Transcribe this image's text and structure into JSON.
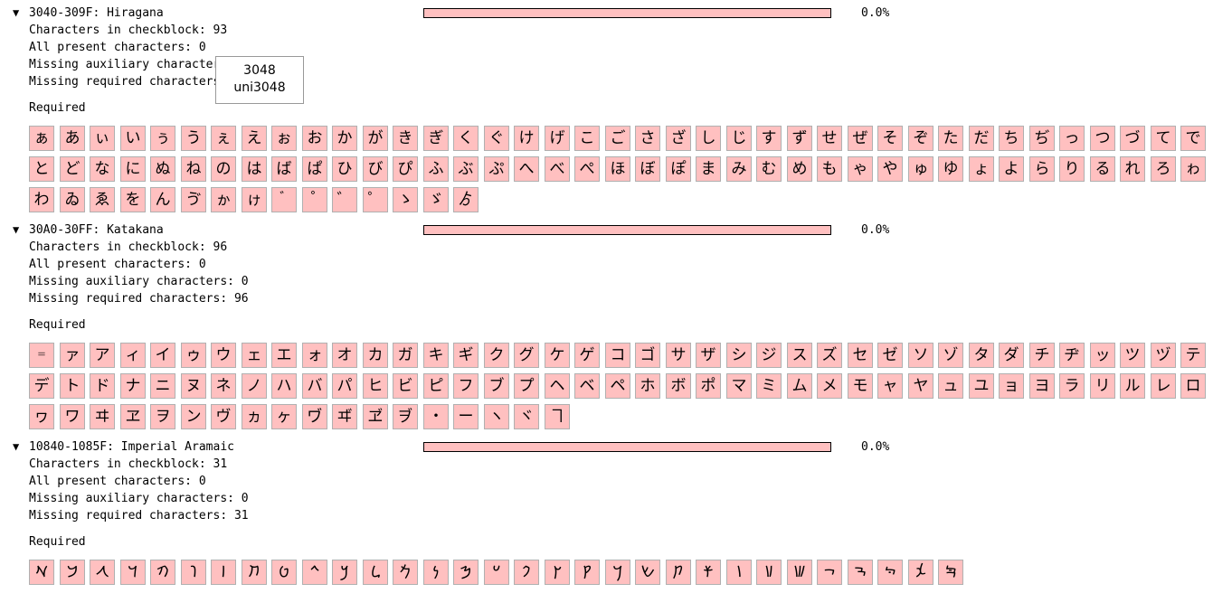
{
  "blocks": [
    {
      "title": "3040-309F: Hiragana",
      "percent": "0.0%",
      "progress": 0.0,
      "lines": [
        "Characters in checkblock: 93",
        "All present characters: 0",
        "Missing auxiliary characters: 0",
        "Missing required characters: 93"
      ],
      "required_label": "Required",
      "chars": [
        "ぁ",
        "あ",
        "ぃ",
        "い",
        "ぅ",
        "う",
        "ぇ",
        "え",
        "ぉ",
        "お",
        "か",
        "が",
        "き",
        "ぎ",
        "く",
        "ぐ",
        "け",
        "げ",
        "こ",
        "ご",
        "さ",
        "ざ",
        "し",
        "じ",
        "す",
        "ず",
        "せ",
        "ぜ",
        "そ",
        "ぞ",
        "た",
        "だ",
        "ち",
        "ぢ",
        "っ",
        "つ",
        "づ",
        "て",
        "で",
        "と",
        "ど",
        "な",
        "に",
        "ぬ",
        "ね",
        "の",
        "は",
        "ば",
        "ぱ",
        "ひ",
        "び",
        "ぴ",
        "ふ",
        "ぶ",
        "ぷ",
        "へ",
        "べ",
        "ぺ",
        "ほ",
        "ぼ",
        "ぽ",
        "ま",
        "み",
        "む",
        "め",
        "も",
        "ゃ",
        "や",
        "ゅ",
        "ゆ",
        "ょ",
        "よ",
        "ら",
        "り",
        "る",
        "れ",
        "ろ",
        "ゎ",
        "わ",
        "ゐ",
        "ゑ",
        "を",
        "ん",
        "ゔ",
        "ゕ",
        "ゖ",
        "゙",
        "゚",
        "゛",
        "゜",
        "ゝ",
        "ゞ",
        "ゟ"
      ]
    },
    {
      "title": "30A0-30FF: Katakana",
      "percent": "0.0%",
      "progress": 0.0,
      "lines": [
        "Characters in checkblock: 96",
        "All present characters: 0",
        "Missing auxiliary characters: 0",
        "Missing required characters: 96"
      ],
      "required_label": "Required",
      "chars": [
        "゠",
        "ァ",
        "ア",
        "ィ",
        "イ",
        "ゥ",
        "ウ",
        "ェ",
        "エ",
        "ォ",
        "オ",
        "カ",
        "ガ",
        "キ",
        "ギ",
        "ク",
        "グ",
        "ケ",
        "ゲ",
        "コ",
        "ゴ",
        "サ",
        "ザ",
        "シ",
        "ジ",
        "ス",
        "ズ",
        "セ",
        "ゼ",
        "ソ",
        "ゾ",
        "タ",
        "ダ",
        "チ",
        "ヂ",
        "ッ",
        "ツ",
        "ヅ",
        "テ",
        "デ",
        "ト",
        "ド",
        "ナ",
        "ニ",
        "ヌ",
        "ネ",
        "ノ",
        "ハ",
        "バ",
        "パ",
        "ヒ",
        "ビ",
        "ピ",
        "フ",
        "ブ",
        "プ",
        "ヘ",
        "ベ",
        "ペ",
        "ホ",
        "ボ",
        "ポ",
        "マ",
        "ミ",
        "ム",
        "メ",
        "モ",
        "ャ",
        "ヤ",
        "ュ",
        "ユ",
        "ョ",
        "ヨ",
        "ラ",
        "リ",
        "ル",
        "レ",
        "ロ",
        "ヮ",
        "ワ",
        "ヰ",
        "ヱ",
        "ヲ",
        "ン",
        "ヴ",
        "ヵ",
        "ヶ",
        "ヷ",
        "ヸ",
        "ヹ",
        "ヺ",
        "・",
        "ー",
        "ヽ",
        "ヾ",
        "ヿ"
      ]
    },
    {
      "title": "10840-1085F: Imperial Aramaic",
      "percent": "0.0%",
      "progress": 0.0,
      "lines": [
        "Characters in checkblock: 31",
        "All present characters: 0",
        "Missing auxiliary characters: 0",
        "Missing required characters: 31"
      ],
      "required_label": "Required",
      "chars": [
        "𐡀",
        "𐡁",
        "𐡂",
        "𐡃",
        "𐡄",
        "𐡅",
        "𐡆",
        "𐡇",
        "𐡈",
        "𐡉",
        "𐡊",
        "𐡋",
        "𐡌",
        "𐡍",
        "𐡎",
        "𐡏",
        "𐡐",
        "𐡑",
        "𐡒",
        "𐡓",
        "𐡔",
        "𐡕",
        "𐡗",
        "𐡘",
        "𐡙",
        "𐡚",
        "𐡛",
        "𐡜",
        "𐡝",
        "𐡞",
        "𐡟"
      ]
    }
  ],
  "tooltip": {
    "code": "3048",
    "name": "uni3048"
  }
}
